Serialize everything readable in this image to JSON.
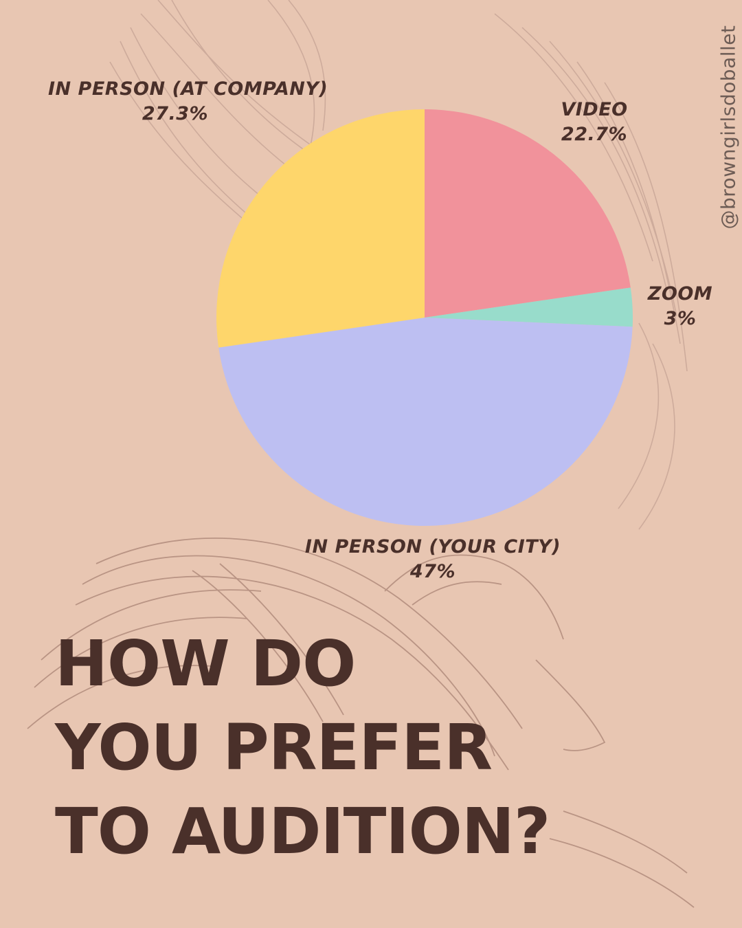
{
  "handle": "@browngirlsdoballet",
  "headline": {
    "line1": "HOW DO",
    "line2": "YOU PREFER",
    "line3": "TO AUDITION?"
  },
  "colors": {
    "background": "#e8c6b2",
    "text": "#4a302a",
    "decor_lines": "#b8958a"
  },
  "chart_data": {
    "type": "pie",
    "slices": [
      {
        "label": "VIDEO",
        "value": 22.7,
        "value_label": "22.7%",
        "color": "#f1929b"
      },
      {
        "label": "ZOOM",
        "value": 3,
        "value_label": "3%",
        "color": "#98dccb"
      },
      {
        "label": "IN PERSON (YOUR CITY)",
        "value": 47,
        "value_label": "47%",
        "color": "#bdbff2"
      },
      {
        "label": "IN PERSON (AT COMPANY)",
        "value": 27.3,
        "value_label": "27.3%",
        "color": "#fed66b"
      }
    ]
  }
}
